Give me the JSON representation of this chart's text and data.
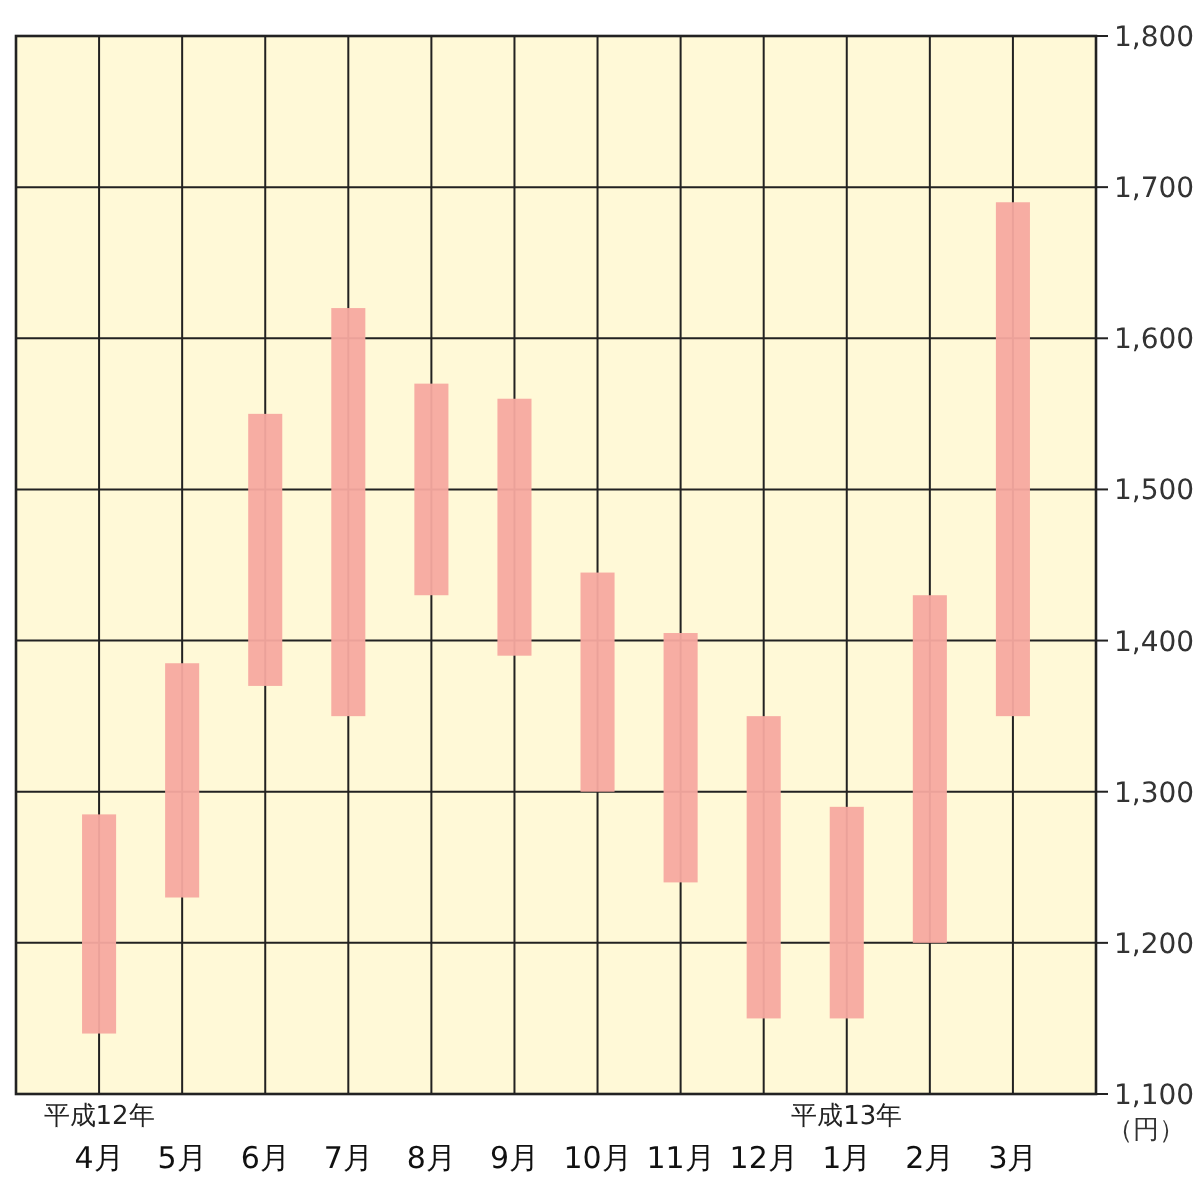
{
  "chart_data": {
    "type": "bar",
    "categories": [
      "4月",
      "5月",
      "6月",
      "7月",
      "8月",
      "9月",
      "10月",
      "11月",
      "12月",
      "1月",
      "2月",
      "3月"
    ],
    "base": [
      1140,
      1230,
      1370,
      1350,
      1430,
      1390,
      1300,
      1240,
      1150,
      1150,
      1200,
      1350
    ],
    "values": [
      145,
      155,
      180,
      270,
      140,
      170,
      145,
      165,
      200,
      140,
      230,
      340
    ],
    "color": "#f7a9a0",
    "ylim": [
      1100,
      1800
    ],
    "yticks": [
      {
        "value": 1100,
        "label": "1,100"
      },
      {
        "value": 1200,
        "label": "1,200"
      },
      {
        "value": 1300,
        "label": "1,300"
      },
      {
        "value": 1400,
        "label": "1,400"
      },
      {
        "value": 1500,
        "label": "1,500"
      },
      {
        "value": 1600,
        "label": "1,600"
      },
      {
        "value": 1700,
        "label": "1,700"
      },
      {
        "value": 1800,
        "label": "1,800"
      }
    ],
    "ylabel": "（円）",
    "grid": true,
    "annotations": [
      "平成12年",
      "平成13年"
    ]
  }
}
